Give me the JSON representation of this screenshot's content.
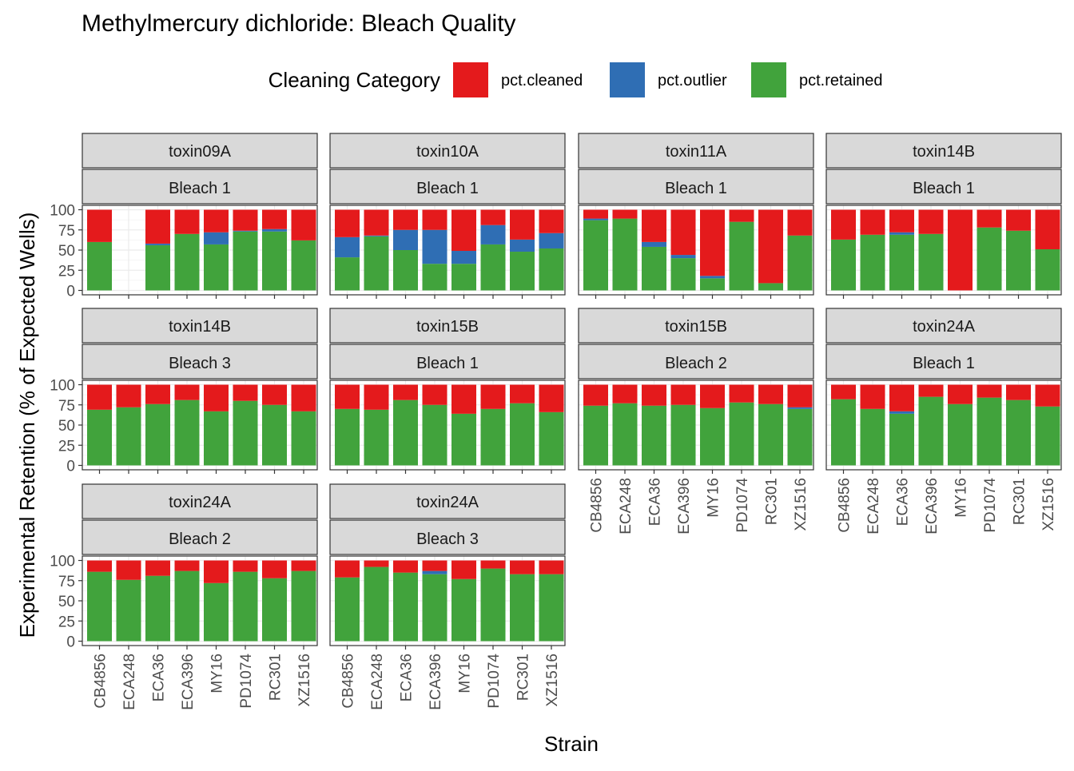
{
  "chart_data": {
    "type": "bar",
    "stacked": true,
    "title": "Methylmercury dichloride: Bleach Quality",
    "xlabel": "Strain",
    "ylabel": "Experimental Retention (% of Expected Wells)",
    "ylim": [
      0,
      100
    ],
    "yticks": [
      0,
      25,
      50,
      75,
      100
    ],
    "legend": {
      "title": "Cleaning Category",
      "position": "top",
      "entries": [
        {
          "name": "pct.cleaned",
          "color": "#e41a1c"
        },
        {
          "name": "pct.outlier",
          "color": "#2f6eb4"
        },
        {
          "name": "pct.retained",
          "color": "#41a33c"
        }
      ]
    },
    "categories": [
      "CB4856",
      "ECA248",
      "ECA36",
      "ECA396",
      "MY16",
      "PD1074",
      "RC301",
      "XZ1516"
    ],
    "panels": [
      {
        "plate": "toxin09A",
        "bleach": "Bleach 1",
        "retained": [
          60,
          null,
          56,
          70,
          57,
          73,
          73,
          62
        ],
        "outlier": [
          0,
          null,
          2,
          0,
          15,
          1,
          3,
          0
        ],
        "cleaned": [
          40,
          null,
          42,
          30,
          28,
          26,
          24,
          38
        ]
      },
      {
        "plate": "toxin10A",
        "bleach": "Bleach 1",
        "retained": [
          41,
          67,
          50,
          33,
          33,
          57,
          48,
          52
        ],
        "outlier": [
          25,
          1,
          25,
          42,
          16,
          24,
          15,
          19
        ],
        "cleaned": [
          34,
          32,
          25,
          25,
          51,
          19,
          37,
          29
        ]
      },
      {
        "plate": "toxin11A",
        "bleach": "Bleach 1",
        "retained": [
          87,
          89,
          54,
          40,
          15,
          85,
          9,
          68
        ],
        "outlier": [
          2,
          0,
          6,
          4,
          3,
          0,
          0,
          0
        ],
        "cleaned": [
          11,
          11,
          40,
          56,
          82,
          15,
          91,
          32
        ]
      },
      {
        "plate": "toxin14B",
        "bleach": "Bleach 1",
        "retained": [
          63,
          69,
          69,
          70,
          0,
          78,
          74,
          51
        ],
        "outlier": [
          0,
          0,
          3,
          0,
          0,
          0,
          0,
          0
        ],
        "cleaned": [
          37,
          31,
          28,
          30,
          100,
          22,
          26,
          49
        ]
      },
      {
        "plate": "toxin14B",
        "bleach": "Bleach 3",
        "retained": [
          69,
          72,
          76,
          81,
          67,
          80,
          75,
          67
        ],
        "outlier": [
          0,
          0,
          0,
          0,
          0,
          0,
          0,
          0
        ],
        "cleaned": [
          31,
          28,
          24,
          19,
          33,
          20,
          25,
          33
        ]
      },
      {
        "plate": "toxin15B",
        "bleach": "Bleach 1",
        "retained": [
          70,
          69,
          81,
          75,
          64,
          70,
          77,
          66
        ],
        "outlier": [
          0,
          0,
          0,
          0,
          0,
          0,
          0,
          0
        ],
        "cleaned": [
          30,
          31,
          19,
          25,
          36,
          30,
          23,
          34
        ]
      },
      {
        "plate": "toxin15B",
        "bleach": "Bleach 2",
        "retained": [
          74,
          77,
          74,
          75,
          71,
          78,
          76,
          70
        ],
        "outlier": [
          0,
          0,
          0,
          0,
          0,
          0,
          0,
          2
        ],
        "cleaned": [
          26,
          23,
          26,
          25,
          29,
          22,
          24,
          28
        ]
      },
      {
        "plate": "toxin24A",
        "bleach": "Bleach 1",
        "retained": [
          82,
          70,
          64,
          85,
          76,
          84,
          81,
          73
        ],
        "outlier": [
          0,
          0,
          3,
          0,
          0,
          0,
          0,
          0
        ],
        "cleaned": [
          18,
          30,
          33,
          15,
          24,
          16,
          19,
          27
        ]
      },
      {
        "plate": "toxin24A",
        "bleach": "Bleach 2",
        "retained": [
          86,
          76,
          81,
          87,
          72,
          86,
          78,
          87
        ],
        "outlier": [
          0,
          0,
          0,
          0,
          0,
          0,
          0,
          0
        ],
        "cleaned": [
          14,
          24,
          19,
          13,
          28,
          14,
          22,
          13
        ]
      },
      {
        "plate": "toxin24A",
        "bleach": "Bleach 3",
        "retained": [
          79,
          92,
          85,
          83,
          77,
          90,
          83,
          83
        ],
        "outlier": [
          0,
          0,
          0,
          4,
          0,
          0,
          0,
          0
        ],
        "cleaned": [
          21,
          8,
          15,
          13,
          23,
          10,
          17,
          17
        ]
      }
    ]
  }
}
